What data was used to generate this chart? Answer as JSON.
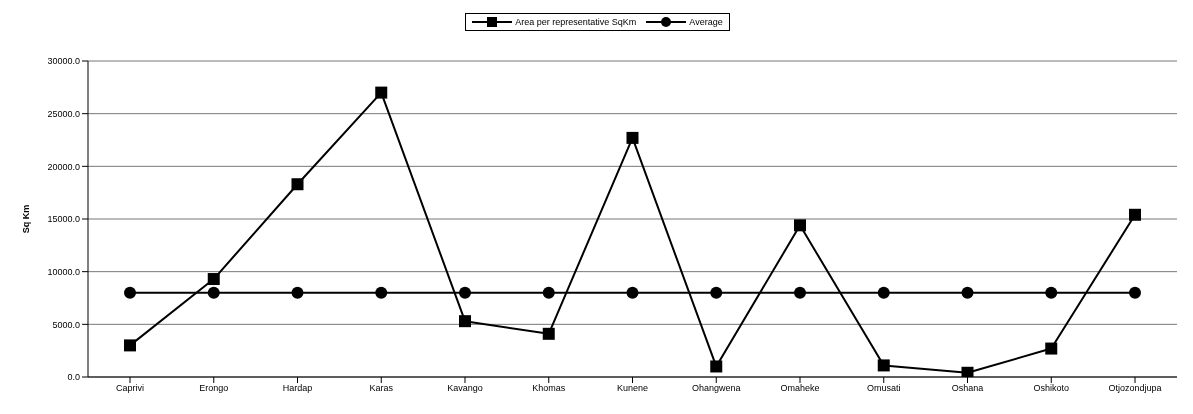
{
  "chart_data": {
    "type": "line",
    "ylabel": "Sq Km",
    "categories": [
      "Caprivi",
      "Erongo",
      "Hardap",
      "Karas",
      "Kavango",
      "Khomas",
      "Kunene",
      "Ohangwena",
      "Omaheke",
      "Omusati",
      "Oshana",
      "Oshikoto",
      "Otjozondjupa"
    ],
    "series": [
      {
        "name": "Area per representative SqKm",
        "color": "#000000",
        "marker": "square",
        "values": [
          3000,
          9300,
          18300,
          27000,
          5300,
          4100,
          22700,
          1000,
          14400,
          1100,
          400,
          2700,
          15400
        ]
      },
      {
        "name": "Average",
        "color": "#000000",
        "marker": "circle",
        "values": [
          8000,
          8000,
          8000,
          8000,
          8000,
          8000,
          8000,
          8000,
          8000,
          8000,
          8000,
          8000,
          8000
        ]
      }
    ],
    "ylim": [
      0,
      30000
    ],
    "yticks": [
      {
        "value": 0,
        "label": "0.0"
      },
      {
        "value": 5000,
        "label": "5000.0"
      },
      {
        "value": 10000,
        "label": "10000.0"
      },
      {
        "value": 15000,
        "label": "15000.0"
      },
      {
        "value": 20000,
        "label": "20000.0"
      },
      {
        "value": 25000,
        "label": "25000.0"
      },
      {
        "value": 30000,
        "label": "30000.0"
      }
    ],
    "grid": "y",
    "legend": "top",
    "line_style": "solid"
  }
}
